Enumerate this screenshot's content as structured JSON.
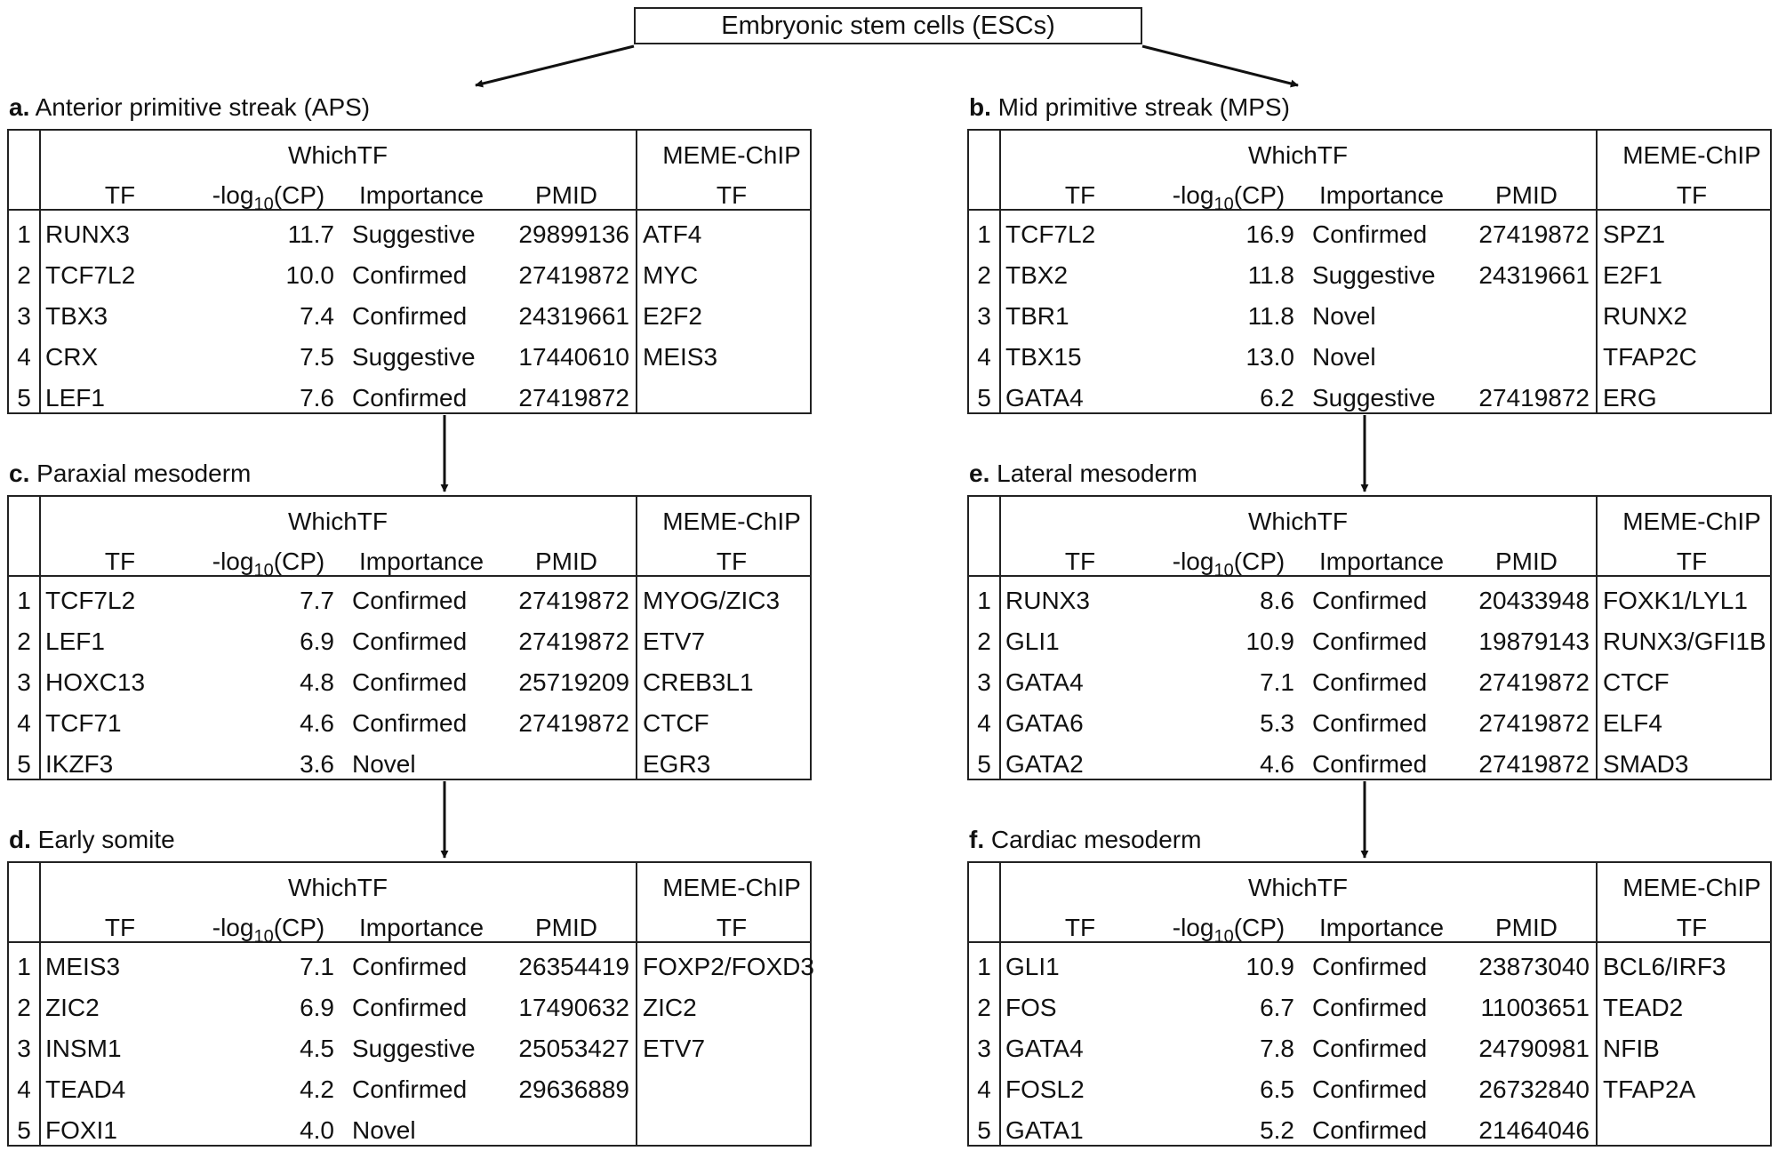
{
  "root": {
    "label": "Embryonic stem cells (ESCs)"
  },
  "headers": {
    "group_whichtf": "WhichTF",
    "group_meme": "MEME-ChIP",
    "col_tf": "TF",
    "col_log_prefix": "-log",
    "col_log_sub": "10",
    "col_log_suffix": "(CP)",
    "col_importance": "Importance",
    "col_pmid": "PMID",
    "col_meme_tf": "TF"
  },
  "panels": [
    {
      "letter": "a.",
      "title": "Anterior primitive streak (APS)",
      "rows": [
        {
          "n": "1",
          "tf": "RUNX3",
          "cp": "11.7",
          "imp": "Suggestive",
          "pmid": "29899136",
          "meme": "ATF4"
        },
        {
          "n": "2",
          "tf": "TCF7L2",
          "cp": "10.0",
          "imp": "Confirmed",
          "pmid": "27419872",
          "meme": "MYC"
        },
        {
          "n": "3",
          "tf": "TBX3",
          "cp": "7.4",
          "imp": "Confirmed",
          "pmid": "24319661",
          "meme": "E2F2"
        },
        {
          "n": "4",
          "tf": "CRX",
          "cp": "7.5",
          "imp": "Suggestive",
          "pmid": "17440610",
          "meme": "MEIS3"
        },
        {
          "n": "5",
          "tf": "LEF1",
          "cp": "7.6",
          "imp": "Confirmed",
          "pmid": "27419872",
          "meme": ""
        }
      ]
    },
    {
      "letter": "b.",
      "title": "Mid primitive streak (MPS)",
      "rows": [
        {
          "n": "1",
          "tf": "TCF7L2",
          "cp": "16.9",
          "imp": "Confirmed",
          "pmid": "27419872",
          "meme": "SPZ1"
        },
        {
          "n": "2",
          "tf": "TBX2",
          "cp": "11.8",
          "imp": "Suggestive",
          "pmid": "24319661",
          "meme": "E2F1"
        },
        {
          "n": "3",
          "tf": "TBR1",
          "cp": "11.8",
          "imp": "Novel",
          "pmid": "",
          "meme": "RUNX2"
        },
        {
          "n": "4",
          "tf": "TBX15",
          "cp": "13.0",
          "imp": "Novel",
          "pmid": "",
          "meme": "TFAP2C"
        },
        {
          "n": "5",
          "tf": "GATA4",
          "cp": "6.2",
          "imp": "Suggestive",
          "pmid": "27419872",
          "meme": "ERG"
        }
      ]
    },
    {
      "letter": "c.",
      "title": "Paraxial mesoderm",
      "rows": [
        {
          "n": "1",
          "tf": "TCF7L2",
          "cp": "7.7",
          "imp": "Confirmed",
          "pmid": "27419872",
          "meme": "MYOG/ZIC3"
        },
        {
          "n": "2",
          "tf": "LEF1",
          "cp": "6.9",
          "imp": "Confirmed",
          "pmid": "27419872",
          "meme": "ETV7"
        },
        {
          "n": "3",
          "tf": "HOXC13",
          "cp": "4.8",
          "imp": "Confirmed",
          "pmid": "25719209",
          "meme": "CREB3L1"
        },
        {
          "n": "4",
          "tf": "TCF71",
          "cp": "4.6",
          "imp": "Confirmed",
          "pmid": "27419872",
          "meme": "CTCF"
        },
        {
          "n": "5",
          "tf": "IKZF3",
          "cp": "3.6",
          "imp": "Novel",
          "pmid": "",
          "meme": "EGR3"
        }
      ]
    },
    {
      "letter": "e.",
      "title": "Lateral mesoderm",
      "rows": [
        {
          "n": "1",
          "tf": "RUNX3",
          "cp": "8.6",
          "imp": "Confirmed",
          "pmid": "20433948",
          "meme": "FOXK1/LYL1"
        },
        {
          "n": "2",
          "tf": "GLI1",
          "cp": "10.9",
          "imp": "Confirmed",
          "pmid": "19879143",
          "meme": "RUNX3/GFI1B"
        },
        {
          "n": "3",
          "tf": "GATA4",
          "cp": "7.1",
          "imp": "Confirmed",
          "pmid": "27419872",
          "meme": "CTCF"
        },
        {
          "n": "4",
          "tf": "GATA6",
          "cp": "5.3",
          "imp": "Confirmed",
          "pmid": "27419872",
          "meme": "ELF4"
        },
        {
          "n": "5",
          "tf": "GATA2",
          "cp": "4.6",
          "imp": "Confirmed",
          "pmid": "27419872",
          "meme": "SMAD3"
        }
      ]
    },
    {
      "letter": "d.",
      "title": "Early somite",
      "rows": [
        {
          "n": "1",
          "tf": "MEIS3",
          "cp": "7.1",
          "imp": "Confirmed",
          "pmid": "26354419",
          "meme": "FOXP2/FOXD3"
        },
        {
          "n": "2",
          "tf": "ZIC2",
          "cp": "6.9",
          "imp": "Confirmed",
          "pmid": "17490632",
          "meme": "ZIC2"
        },
        {
          "n": "3",
          "tf": "INSM1",
          "cp": "4.5",
          "imp": "Suggestive",
          "pmid": "25053427",
          "meme": "ETV7"
        },
        {
          "n": "4",
          "tf": "TEAD4",
          "cp": "4.2",
          "imp": "Confirmed",
          "pmid": "29636889",
          "meme": ""
        },
        {
          "n": "5",
          "tf": "FOXI1",
          "cp": "4.0",
          "imp": "Novel",
          "pmid": "",
          "meme": ""
        }
      ]
    },
    {
      "letter": "f.",
      "title": "Cardiac mesoderm",
      "rows": [
        {
          "n": "1",
          "tf": "GLI1",
          "cp": "10.9",
          "imp": "Confirmed",
          "pmid": "23873040",
          "meme": "BCL6/IRF3"
        },
        {
          "n": "2",
          "tf": "FOS",
          "cp": "6.7",
          "imp": "Confirmed",
          "pmid": "11003651",
          "meme": "TEAD2"
        },
        {
          "n": "3",
          "tf": "GATA4",
          "cp": "7.8",
          "imp": "Confirmed",
          "pmid": "24790981",
          "meme": "NFIB"
        },
        {
          "n": "4",
          "tf": "FOSL2",
          "cp": "6.5",
          "imp": "Confirmed",
          "pmid": "26732840",
          "meme": "TFAP2A"
        },
        {
          "n": "5",
          "tf": "GATA1",
          "cp": "5.2",
          "imp": "Confirmed",
          "pmid": "21464046",
          "meme": ""
        }
      ]
    }
  ]
}
